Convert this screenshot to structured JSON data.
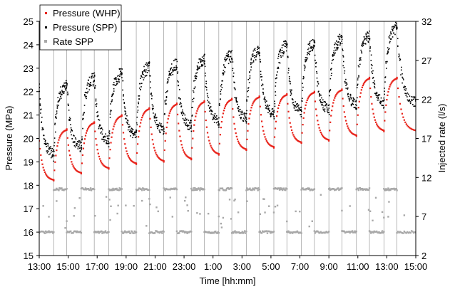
{
  "chart_data": {
    "type": "scatter",
    "xlabel": "Time  [hh:mm]",
    "ylabel_left": "Pressure (MPa)",
    "ylabel_right": "Injected rate (l/s)",
    "ylim_left": [
      15,
      25
    ],
    "ylim_right": [
      2,
      32
    ],
    "xlim_hours": [
      13,
      39
    ],
    "x_ticks": [
      "13:00",
      "15:00",
      "17:00",
      "19:00",
      "21:00",
      "23:00",
      "1:00",
      "3:00",
      "5:00",
      "7:00",
      "9:00",
      "11:00",
      "13:00",
      "15:00"
    ],
    "y_ticks_left": [
      "15",
      "16",
      "17",
      "18",
      "19",
      "20",
      "21",
      "22",
      "23",
      "24",
      "25"
    ],
    "y_ticks_right": [
      "2",
      "7",
      "12",
      "17",
      "22",
      "27",
      "32"
    ],
    "grid": "vertical",
    "legend_position": "top-left",
    "cycles": {
      "start_hours": [
        14.0,
        15.9,
        17.8,
        19.7,
        21.6,
        23.5,
        25.4,
        27.3,
        29.2,
        31.1,
        33.0,
        34.9,
        36.8
      ],
      "shutin_start_hours": [
        13.0,
        14.9,
        16.8,
        18.7,
        20.6,
        22.5,
        24.4,
        26.3,
        28.2,
        30.1,
        32.0,
        33.9,
        35.8,
        37.7
      ],
      "injection_rate_high": 10.5,
      "injection_rate_low": 5.0
    },
    "series": [
      {
        "name": "Pressure (WHP)",
        "color": "#e8231a",
        "marker": "dot",
        "peaks": [
          19.9,
          20.4,
          20.7,
          21.0,
          21.3,
          21.5,
          21.6,
          21.7,
          21.8,
          21.9,
          22.0,
          22.1,
          22.6,
          22.6
        ],
        "troughs": [
          18.2,
          18.5,
          18.7,
          18.9,
          19.0,
          19.1,
          19.3,
          19.5,
          19.6,
          19.8,
          19.9,
          20.1,
          20.3
        ]
      },
      {
        "name": "Pressure (SPP)",
        "color": "#000000",
        "marker": "dot",
        "peaks": [
          22.1,
          22.3,
          22.6,
          22.8,
          23.1,
          23.2,
          23.4,
          23.6,
          23.8,
          24.0,
          24.1,
          24.3,
          24.4,
          24.8
        ],
        "troughs": [
          19.3,
          19.6,
          19.9,
          20.1,
          20.3,
          20.5,
          20.7,
          20.8,
          21.0,
          21.1,
          21.2,
          21.4,
          21.5
        ]
      },
      {
        "name": "Rate SPP",
        "color": "#a8a8a8",
        "marker": "square",
        "values_high": 10.5,
        "values_low": 5.0
      }
    ]
  }
}
